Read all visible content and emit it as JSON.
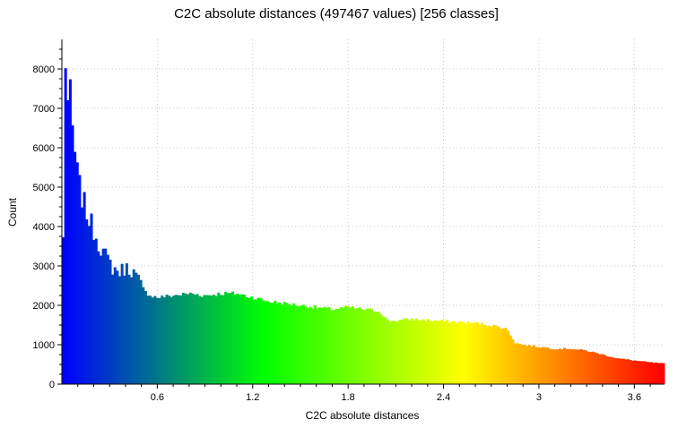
{
  "chart_data": {
    "type": "bar",
    "title": "C2C absolute distances (497467 values)  [256 classes]",
    "xlabel": "C2C absolute distances",
    "ylabel": "Count",
    "xlim": [
      0.0,
      3.79
    ],
    "ylim": [
      0,
      8750
    ],
    "xticks": [
      "0.6",
      "1.2",
      "1.8",
      "2.4",
      "3",
      "3.6"
    ],
    "xtick_values": [
      0.6,
      1.2,
      1.8,
      2.4,
      3.0,
      3.6
    ],
    "yticks": [
      "0",
      "1000",
      "2000",
      "3000",
      "4000",
      "5000",
      "6000",
      "7000",
      "8000"
    ],
    "ytick_values": [
      0,
      1000,
      2000,
      3000,
      4000,
      5000,
      6000,
      7000,
      8000
    ],
    "grid": true,
    "legend": "none",
    "color_scale": [
      "#0000ff",
      "#00ff00",
      "#ffff00",
      "#ff0000"
    ],
    "num_classes": 256,
    "profile_x": [
      0.0,
      0.012,
      0.024,
      0.04,
      0.056,
      0.07,
      0.085,
      0.1,
      0.13,
      0.16,
      0.2,
      0.24,
      0.28,
      0.32,
      0.36,
      0.4,
      0.44,
      0.48,
      0.52,
      0.56,
      0.6,
      0.7,
      0.8,
      0.9,
      1.0,
      1.1,
      1.2,
      1.3,
      1.4,
      1.5,
      1.6,
      1.7,
      1.8,
      1.9,
      2.0,
      2.05,
      2.2,
      2.4,
      2.6,
      2.7,
      2.8,
      2.85,
      2.9,
      3.0,
      3.1,
      3.2,
      3.3,
      3.4,
      3.5,
      3.6,
      3.7,
      3.79
    ],
    "profile_y": [
      900,
      5400,
      8750,
      6800,
      7400,
      6100,
      5800,
      5200,
      4700,
      4300,
      3900,
      3500,
      3200,
      2950,
      2850,
      2950,
      2900,
      2650,
      2350,
      2250,
      2200,
      2250,
      2300,
      2250,
      2300,
      2300,
      2200,
      2100,
      2050,
      2000,
      1950,
      1900,
      1950,
      1900,
      1850,
      1600,
      1650,
      1600,
      1550,
      1500,
      1400,
      1050,
      1000,
      950,
      900,
      900,
      850,
      750,
      650,
      600,
      550,
      520
    ]
  }
}
